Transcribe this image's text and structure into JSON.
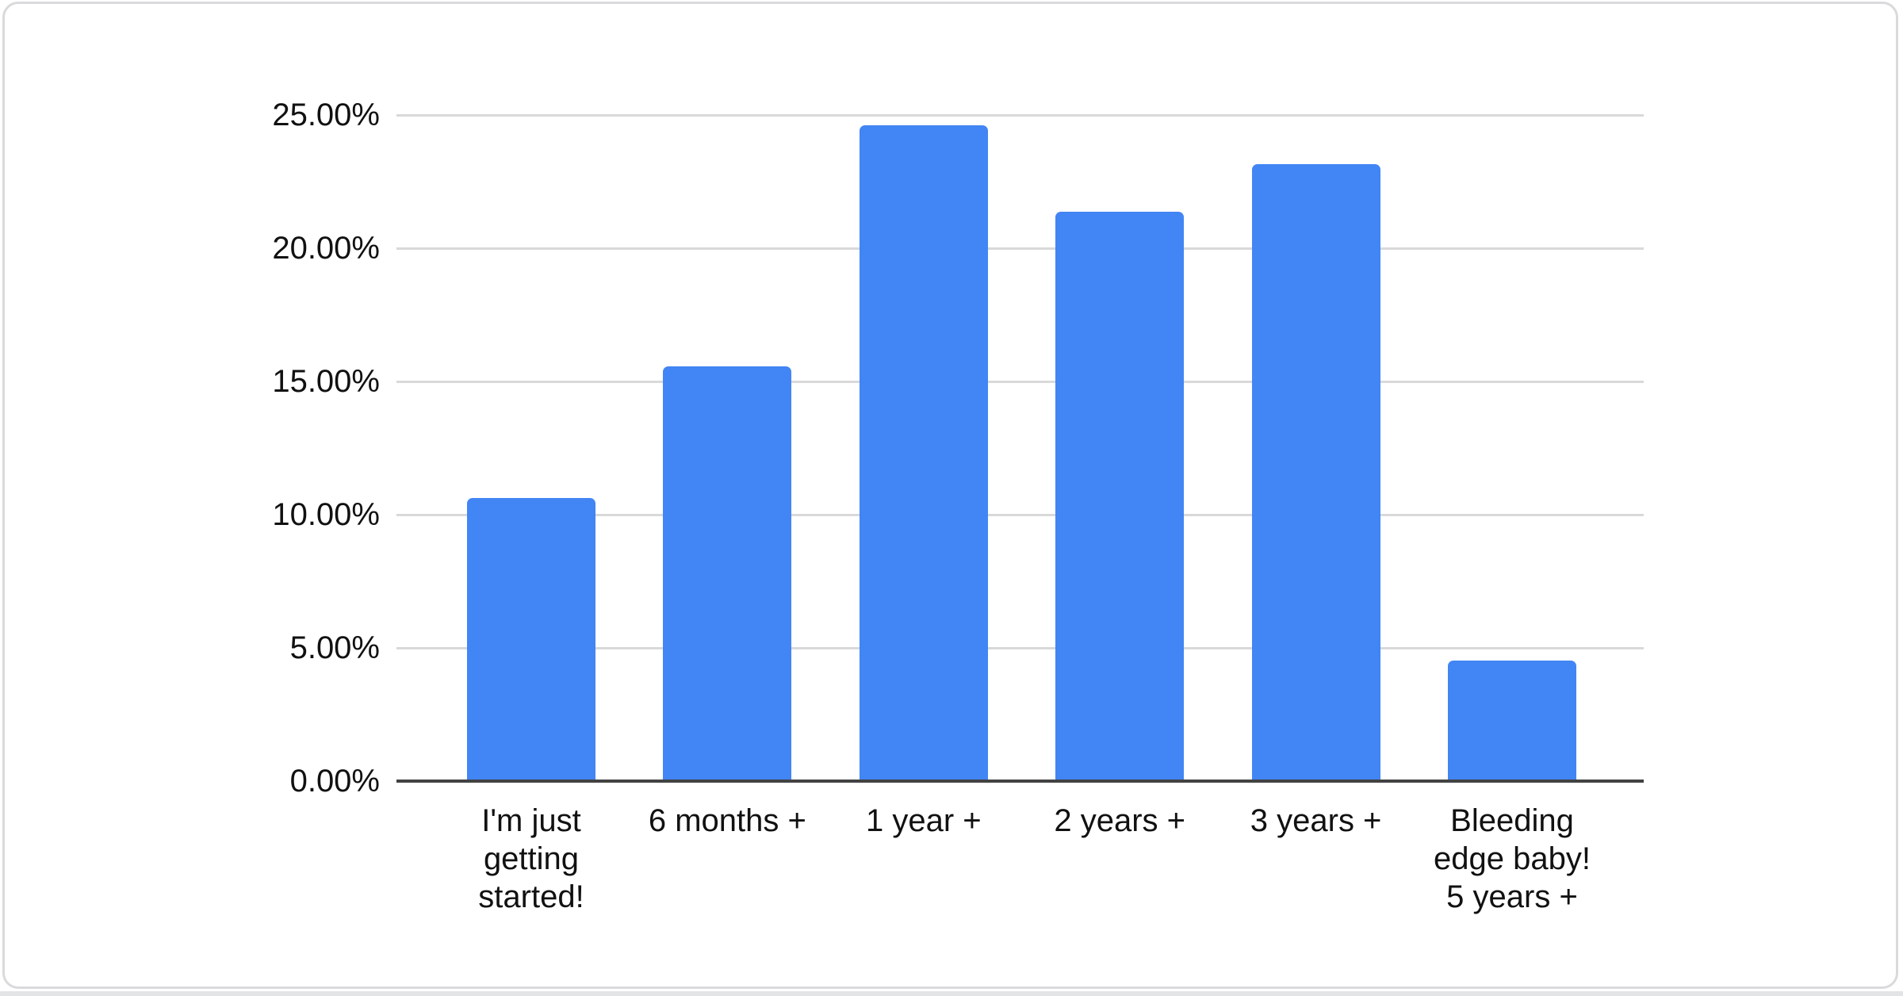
{
  "chart_data": {
    "type": "bar",
    "title": "",
    "xlabel": "",
    "ylabel": "",
    "categories": [
      "I'm just\ngetting\nstarted!",
      "6 months +",
      "1 year +",
      "2 years +",
      "3 years +",
      "Bleeding\nedge baby!\n5 years +"
    ],
    "values": [
      10.62,
      15.56,
      24.61,
      21.37,
      23.15,
      4.52
    ],
    "value_unit": "%",
    "ylim": [
      0,
      25
    ],
    "y_tick_values": [
      25,
      20,
      15,
      10,
      5,
      0
    ],
    "y_tick_labels": [
      "25.00%",
      "20.00%",
      "15.00%",
      "10.00%",
      "5.00%",
      "0.00%"
    ],
    "grid": true,
    "legend_position": "none",
    "colors": {
      "bar": "#4285f4",
      "gridline": "#d9d9d9",
      "axis_line": "#424242",
      "label_text": "#111111",
      "card_background": "#ffffff",
      "card_border": "#d9dadc"
    }
  }
}
